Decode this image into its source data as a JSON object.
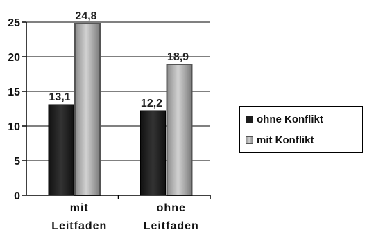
{
  "chart_data": {
    "type": "bar",
    "categories": [
      [
        "mit",
        "Leitfaden"
      ],
      [
        "ohne",
        "Leitfaden"
      ]
    ],
    "series": [
      {
        "name": "ohne Konflikt",
        "values": [
          13.1,
          12.2
        ],
        "labels": [
          "13,1",
          "12,2"
        ],
        "color": "#1c1c1c"
      },
      {
        "name": "mit Konflikt",
        "values": [
          24.8,
          18.9
        ],
        "labels": [
          "24,8",
          "18,9"
        ],
        "color": "#8c8c8c"
      }
    ],
    "y_ticks": [
      "0",
      "5",
      "10",
      "15",
      "20",
      "25"
    ],
    "ylim": [
      0,
      25
    ],
    "grid": true,
    "legend_position": "right"
  }
}
